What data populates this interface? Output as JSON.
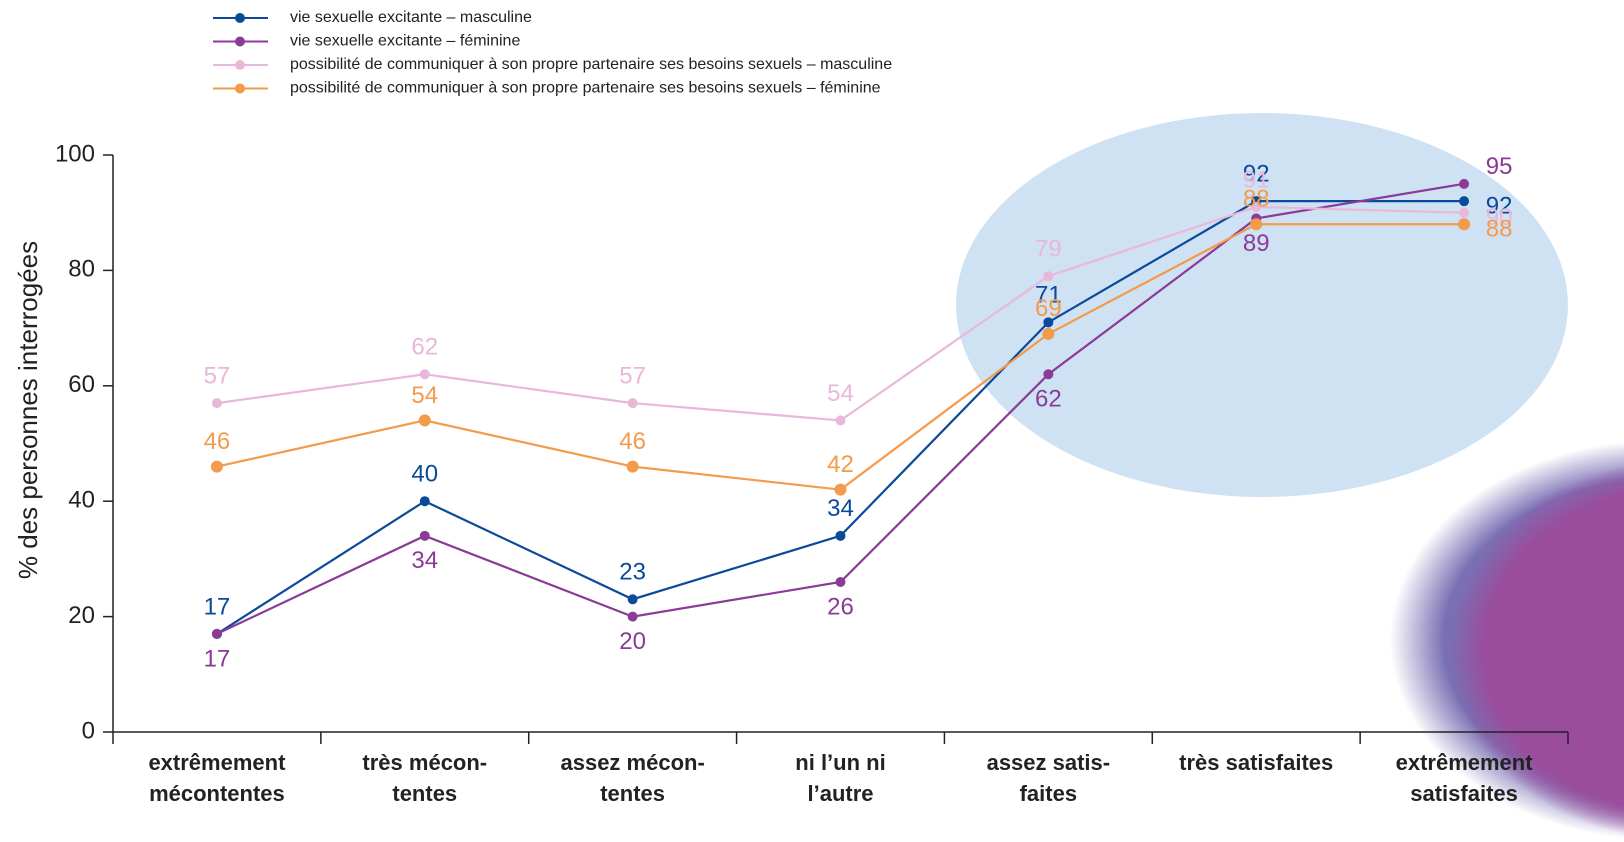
{
  "chart_data": {
    "type": "line",
    "y_label": "% des personnes interrogées",
    "categories": [
      [
        "extrêmement",
        "mécontentes"
      ],
      [
        "très mécon-",
        "tentes"
      ],
      [
        "assez mécon-",
        "tentes"
      ],
      [
        "ni l’un ni",
        "l’autre"
      ],
      [
        "assez satis-",
        "faites"
      ],
      [
        "très satisfaites"
      ],
      [
        "extrêmement",
        "satisfaites"
      ]
    ],
    "series": [
      {
        "name": "vie sexuelle excitante – masculine",
        "color": "#0b4a9b",
        "values": [
          17,
          40,
          23,
          34,
          71,
          92,
          92
        ]
      },
      {
        "name": "vie sexuelle excitante – féminine",
        "color": "#8b3a97",
        "values": [
          17,
          34,
          20,
          26,
          62,
          89,
          95
        ]
      },
      {
        "name": "possibilité de communiquer à son propre partenaire ses besoins sexuels – masculine",
        "color": "#e9b7d9",
        "values": [
          57,
          62,
          57,
          54,
          79,
          91,
          90
        ]
      },
      {
        "name": "possibilité de communiquer à son propre partenaire ses besoins sexuels – féminine",
        "color": "#f39a4b",
        "values": [
          46,
          54,
          46,
          42,
          69,
          88,
          88
        ]
      }
    ],
    "ylim": [
      0,
      100
    ],
    "yticks": [
      0,
      20,
      40,
      60,
      80,
      100
    ]
  }
}
